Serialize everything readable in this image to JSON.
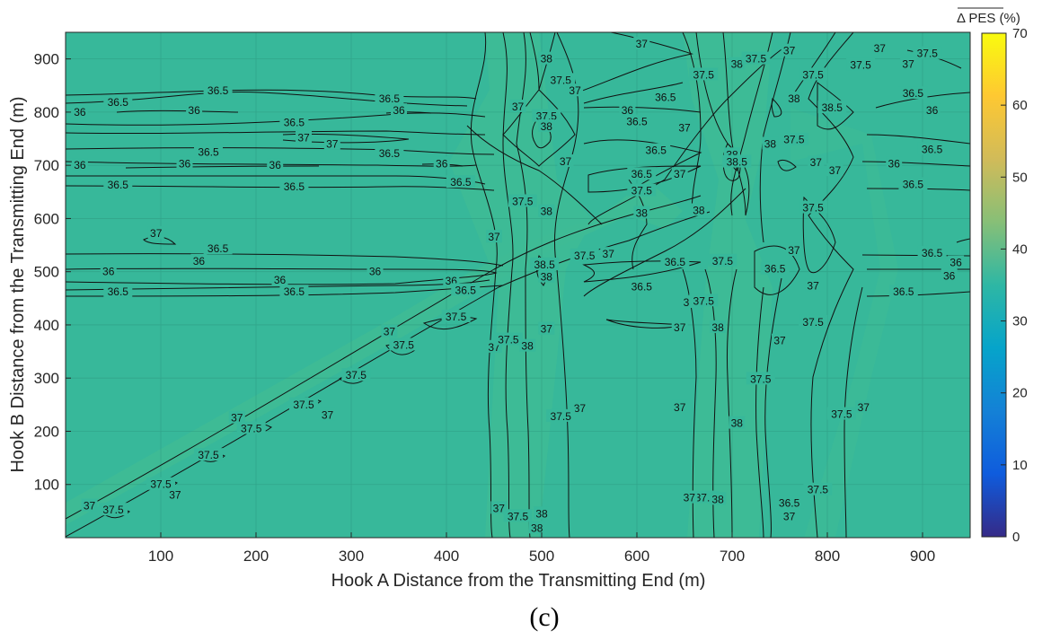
{
  "chart_data": {
    "type": "heatmap",
    "subtype": "filled-contour",
    "xlabel": "Hook A Distance from the Transmitting End (m)",
    "ylabel": "Hook B Distance from the Transmitting End (m)",
    "panel_label": "(c)",
    "xlim": [
      0,
      950
    ],
    "ylim": [
      0,
      950
    ],
    "xticks": [
      100,
      200,
      300,
      400,
      500,
      600,
      700,
      800,
      900
    ],
    "yticks": [
      100,
      200,
      300,
      400,
      500,
      600,
      700,
      800,
      900
    ],
    "grid": true,
    "colorbar": {
      "title": "Δ PES (%)",
      "title_overline": true,
      "range": [
        0,
        70
      ],
      "ticks": [
        0,
        10,
        20,
        30,
        40,
        50,
        60,
        70
      ],
      "colormap": "parula",
      "stops": [
        "#352a87",
        "#0f5cdd",
        "#1481d6",
        "#06a4ca",
        "#2eb7a4",
        "#87bf77",
        "#d1bb59",
        "#fec832",
        "#f9fb0e"
      ]
    },
    "background_level": 36.8,
    "contour_labels": [
      {
        "text": "36",
        "x": 15,
        "y": 800
      },
      {
        "text": "36.5",
        "x": 55,
        "y": 818
      },
      {
        "text": "36",
        "x": 135,
        "y": 803
      },
      {
        "text": "36.5",
        "x": 160,
        "y": 840
      },
      {
        "text": "36.5",
        "x": 340,
        "y": 825
      },
      {
        "text": "36",
        "x": 350,
        "y": 803
      },
      {
        "text": "36.5",
        "x": 240,
        "y": 780
      },
      {
        "text": "37",
        "x": 250,
        "y": 752
      },
      {
        "text": "37",
        "x": 280,
        "y": 740
      },
      {
        "text": "36.5",
        "x": 150,
        "y": 725
      },
      {
        "text": "36.5",
        "x": 340,
        "y": 722
      },
      {
        "text": "36",
        "x": 15,
        "y": 700
      },
      {
        "text": "36",
        "x": 125,
        "y": 703
      },
      {
        "text": "36",
        "x": 220,
        "y": 700
      },
      {
        "text": "36",
        "x": 395,
        "y": 703
      },
      {
        "text": "36.5",
        "x": 55,
        "y": 663
      },
      {
        "text": "36.5",
        "x": 240,
        "y": 660
      },
      {
        "text": "36.5",
        "x": 415,
        "y": 668
      },
      {
        "text": "37",
        "x": 95,
        "y": 572
      },
      {
        "text": "36.5",
        "x": 160,
        "y": 543
      },
      {
        "text": "36",
        "x": 140,
        "y": 520
      },
      {
        "text": "36",
        "x": 45,
        "y": 500
      },
      {
        "text": "36",
        "x": 225,
        "y": 484
      },
      {
        "text": "36",
        "x": 325,
        "y": 500
      },
      {
        "text": "36.5",
        "x": 55,
        "y": 462
      },
      {
        "text": "36.5",
        "x": 240,
        "y": 462
      },
      {
        "text": "36",
        "x": 405,
        "y": 483
      },
      {
        "text": "36.5",
        "x": 420,
        "y": 465
      },
      {
        "text": "37.5",
        "x": 410,
        "y": 415
      },
      {
        "text": "37",
        "x": 450,
        "y": 358
      },
      {
        "text": "37",
        "x": 340,
        "y": 387
      },
      {
        "text": "37.5",
        "x": 355,
        "y": 362
      },
      {
        "text": "37.5",
        "x": 305,
        "y": 305
      },
      {
        "text": "37.5",
        "x": 250,
        "y": 250
      },
      {
        "text": "37",
        "x": 275,
        "y": 230
      },
      {
        "text": "37",
        "x": 180,
        "y": 225
      },
      {
        "text": "37.5",
        "x": 195,
        "y": 205
      },
      {
        "text": "37.5",
        "x": 150,
        "y": 155
      },
      {
        "text": "37.5",
        "x": 100,
        "y": 100
      },
      {
        "text": "37",
        "x": 115,
        "y": 80
      },
      {
        "text": "37",
        "x": 25,
        "y": 60
      },
      {
        "text": "37.5",
        "x": 50,
        "y": 52
      },
      {
        "text": "38",
        "x": 505,
        "y": 900
      },
      {
        "text": "37.5",
        "x": 520,
        "y": 860
      },
      {
        "text": "37",
        "x": 535,
        "y": 840
      },
      {
        "text": "37",
        "x": 475,
        "y": 810
      },
      {
        "text": "37.5",
        "x": 505,
        "y": 792
      },
      {
        "text": "38",
        "x": 505,
        "y": 773
      },
      {
        "text": "37",
        "x": 525,
        "y": 707
      },
      {
        "text": "37.5",
        "x": 480,
        "y": 632
      },
      {
        "text": "38",
        "x": 505,
        "y": 613
      },
      {
        "text": "37",
        "x": 450,
        "y": 565
      },
      {
        "text": "38.5",
        "x": 503,
        "y": 513
      },
      {
        "text": "38",
        "x": 505,
        "y": 490
      },
      {
        "text": "37.5",
        "x": 545,
        "y": 530
      },
      {
        "text": "37",
        "x": 570,
        "y": 533
      },
      {
        "text": "37.5",
        "x": 465,
        "y": 372
      },
      {
        "text": "38",
        "x": 485,
        "y": 360
      },
      {
        "text": "37",
        "x": 505,
        "y": 392
      },
      {
        "text": "37",
        "x": 540,
        "y": 243
      },
      {
        "text": "37.5",
        "x": 520,
        "y": 228
      },
      {
        "text": "37",
        "x": 455,
        "y": 55
      },
      {
        "text": "37.5",
        "x": 475,
        "y": 40
      },
      {
        "text": "38",
        "x": 500,
        "y": 45
      },
      {
        "text": "38",
        "x": 495,
        "y": 18
      },
      {
        "text": "37",
        "x": 605,
        "y": 928
      },
      {
        "text": "36.5",
        "x": 630,
        "y": 828
      },
      {
        "text": "36",
        "x": 590,
        "y": 803
      },
      {
        "text": "36.5",
        "x": 600,
        "y": 782
      },
      {
        "text": "37",
        "x": 650,
        "y": 770
      },
      {
        "text": "36.5",
        "x": 620,
        "y": 728
      },
      {
        "text": "36.5",
        "x": 605,
        "y": 683
      },
      {
        "text": "37",
        "x": 645,
        "y": 683
      },
      {
        "text": "37.5",
        "x": 605,
        "y": 652
      },
      {
        "text": "38",
        "x": 605,
        "y": 610
      },
      {
        "text": "38",
        "x": 665,
        "y": 615
      },
      {
        "text": "37.5",
        "x": 690,
        "y": 520
      },
      {
        "text": "36.5",
        "x": 640,
        "y": 518
      },
      {
        "text": "36.5",
        "x": 605,
        "y": 472
      },
      {
        "text": "37",
        "x": 655,
        "y": 442
      },
      {
        "text": "37.5",
        "x": 670,
        "y": 445
      },
      {
        "text": "37",
        "x": 645,
        "y": 395
      },
      {
        "text": "38",
        "x": 685,
        "y": 395
      },
      {
        "text": "37",
        "x": 645,
        "y": 245
      },
      {
        "text": "38",
        "x": 705,
        "y": 215
      },
      {
        "text": "37.5",
        "x": 672,
        "y": 75
      },
      {
        "text": "37",
        "x": 655,
        "y": 75
      },
      {
        "text": "38",
        "x": 685,
        "y": 72
      },
      {
        "text": "37.5",
        "x": 670,
        "y": 870
      },
      {
        "text": "38",
        "x": 705,
        "y": 890
      },
      {
        "text": "37.5",
        "x": 725,
        "y": 900
      },
      {
        "text": "37",
        "x": 760,
        "y": 915
      },
      {
        "text": "37.5",
        "x": 785,
        "y": 870
      },
      {
        "text": "38",
        "x": 765,
        "y": 825
      },
      {
        "text": "38.5",
        "x": 805,
        "y": 808
      },
      {
        "text": "38",
        "x": 700,
        "y": 720
      },
      {
        "text": "38.5",
        "x": 705,
        "y": 706
      },
      {
        "text": "38",
        "x": 740,
        "y": 740
      },
      {
        "text": "37.5",
        "x": 765,
        "y": 748
      },
      {
        "text": "37",
        "x": 788,
        "y": 705
      },
      {
        "text": "37",
        "x": 808,
        "y": 690
      },
      {
        "text": "37.5",
        "x": 785,
        "y": 620
      },
      {
        "text": "37",
        "x": 765,
        "y": 540
      },
      {
        "text": "36.5",
        "x": 745,
        "y": 505
      },
      {
        "text": "37",
        "x": 785,
        "y": 473
      },
      {
        "text": "37.5",
        "x": 785,
        "y": 405
      },
      {
        "text": "37",
        "x": 750,
        "y": 370
      },
      {
        "text": "37.5",
        "x": 730,
        "y": 298
      },
      {
        "text": "37",
        "x": 838,
        "y": 245
      },
      {
        "text": "37.5",
        "x": 815,
        "y": 232
      },
      {
        "text": "37.5",
        "x": 790,
        "y": 90
      },
      {
        "text": "37",
        "x": 760,
        "y": 40
      },
      {
        "text": "36.5",
        "x": 760,
        "y": 65
      },
      {
        "text": "37.5",
        "x": 905,
        "y": 910
      },
      {
        "text": "37",
        "x": 885,
        "y": 890
      },
      {
        "text": "37.5",
        "x": 835,
        "y": 888
      },
      {
        "text": "37",
        "x": 855,
        "y": 920
      },
      {
        "text": "36.5",
        "x": 890,
        "y": 835
      },
      {
        "text": "36",
        "x": 910,
        "y": 803
      },
      {
        "text": "36.5",
        "x": 910,
        "y": 730
      },
      {
        "text": "36",
        "x": 870,
        "y": 703
      },
      {
        "text": "36.5",
        "x": 890,
        "y": 664
      },
      {
        "text": "36.5",
        "x": 910,
        "y": 535
      },
      {
        "text": "36",
        "x": 935,
        "y": 517
      },
      {
        "text": "36",
        "x": 928,
        "y": 492
      },
      {
        "text": "36.5",
        "x": 880,
        "y": 462
      }
    ]
  }
}
